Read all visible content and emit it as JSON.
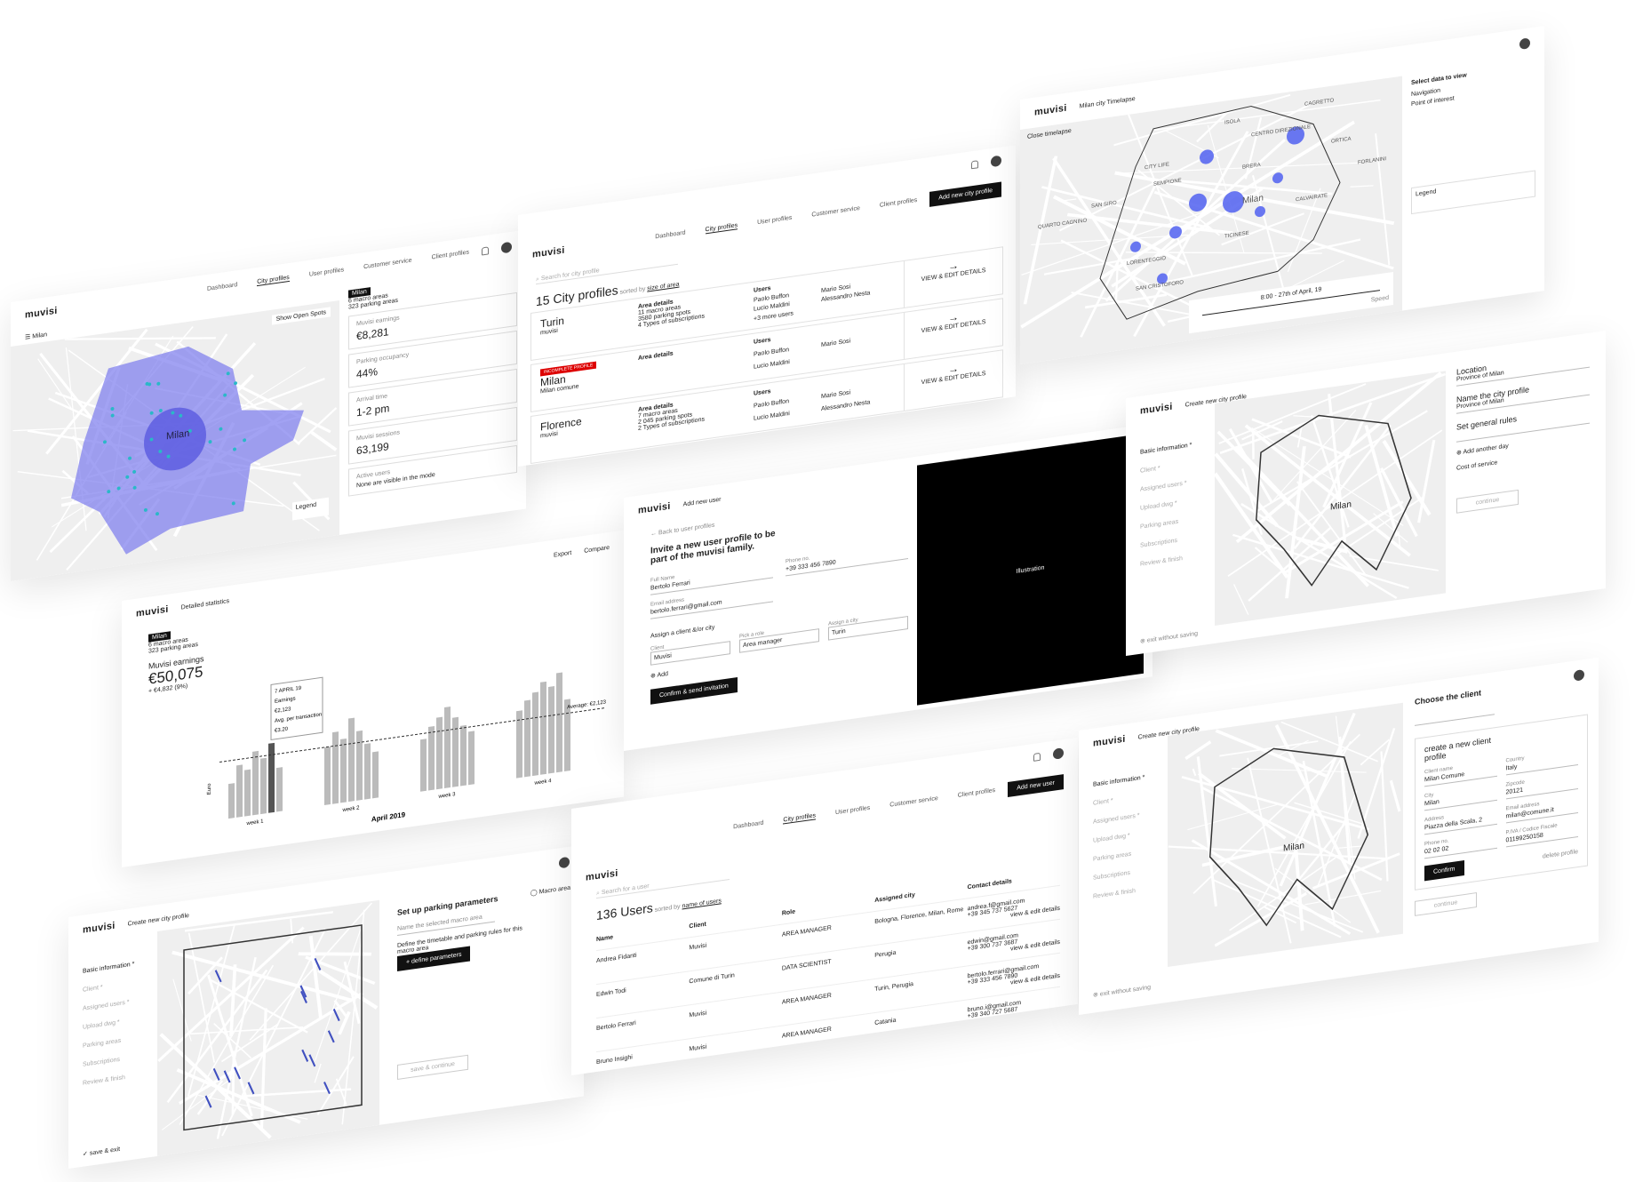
{
  "dashboard": {
    "brand": "muvisi",
    "nav": [
      "Dashboard",
      "City profiles",
      "User profiles",
      "Customer service",
      "Client profiles"
    ],
    "city": "Milan",
    "show_open_spots": "Show Open Spots",
    "macro": "Milan",
    "macro_areas": "6 macro areas",
    "parking_areas": "323 parking areas",
    "map_label": "Milan",
    "legend": "Legend",
    "kpis": [
      {
        "label": "Muvisi earnings",
        "value": "€8,281"
      },
      {
        "label": "Parking occupancy",
        "value": "44%"
      },
      {
        "label": "Arrival time",
        "value": "1-2 pm"
      },
      {
        "label": "Muvisi sessions",
        "value": "63,199"
      },
      {
        "label": "Active users",
        "value": "None are visible in the mode"
      }
    ]
  },
  "city_profiles": {
    "brand": "muvisi",
    "nav": [
      "Dashboard",
      "City profiles",
      "User profiles",
      "Customer service",
      "Client profiles"
    ],
    "add_button": "Add new city profile",
    "search": "Search for city profile",
    "count": "15 City profiles",
    "sorted": "sorted by",
    "sort_key": "size of area",
    "area_details": "Area details",
    "users_title": "Users",
    "action": "VIEW & EDIT DETAILS",
    "cities": [
      {
        "name": "Turin",
        "client": "muvisi",
        "details": [
          "11 macro areas",
          "3580 parking spots",
          "4 Types of subscriptions"
        ],
        "users": [
          "Paolo Buffon",
          "Mario Sosi",
          "Lucio Maldini",
          "Alessandro Nesta"
        ],
        "more": "+3 more users"
      },
      {
        "name": "Milan",
        "client": "Milan comune",
        "badge": "INCOMPLETE PROFILE",
        "details": [],
        "users": [
          "Paolo Buffon",
          "Mario Sosi",
          "Lucio Maldini"
        ]
      },
      {
        "name": "Florence",
        "client": "muvisi",
        "details": [
          "7 macro areas",
          "2 045 parking spots",
          "2 Types of subscriptions"
        ],
        "users": [
          "Paolo Buffon",
          "Mario Sosi",
          "Lucio Maldini",
          "Alessandro Nesta"
        ]
      }
    ]
  },
  "timelapse": {
    "brand": "muvisi",
    "title": "Milan city Timelapse",
    "close": "Close timelapse",
    "districts": [
      "ISOLA",
      "CENTRO DIREZIONALE",
      "CITY LIFE",
      "SEMPIONE",
      "BRERA",
      "SAN SIRO",
      "QUARTO CAGNINO",
      "TICINESE",
      "LORENTEGGIO",
      "SAN CRISTOFORO",
      "CALVAIRATE",
      "FORLANINI",
      "ORTICA",
      "CAGRETTO",
      "Milan"
    ],
    "time": "8:00 - 27th of April, 19",
    "speed": "Speed",
    "select": "Select data to view",
    "options": [
      "Navigation",
      "Point of interest"
    ],
    "legend": "Legend"
  },
  "statistics": {
    "brand": "muvisi",
    "title": "Detailed statistics",
    "export": "Export",
    "compare": "Compare",
    "macro": "Milan",
    "macro_areas": "6 macro areas",
    "parking_areas": "323 parking areas",
    "metric": "Muvisi earnings",
    "total": "€50,075",
    "change": "+ €4,832 (9%)",
    "tooltip": [
      "7 APRIL 19",
      "Earnings",
      "€2,123",
      "Avg. per transaction",
      "€3.20"
    ],
    "average": "Average: €2,123",
    "yaxis": "Euro",
    "weeks": [
      "week 1",
      "week 2",
      "week 3",
      "week 4"
    ],
    "bars": [
      [
        30,
        45,
        40,
        55,
        48,
        60,
        38
      ],
      [
        50,
        62,
        55,
        72,
        60,
        48,
        40
      ],
      [
        45,
        55,
        62,
        70,
        60,
        52,
        46
      ],
      [
        58,
        66,
        72,
        80,
        75,
        86,
        62
      ]
    ],
    "month": "April 2019"
  },
  "add_user": {
    "brand": "muvisi",
    "title": "Add new user",
    "back": "Back to user profiles",
    "heading": "Invite a new user profile to be part of the muvisi family.",
    "fields": [
      {
        "label": "Full Name",
        "value": "Bertolo Ferrari"
      },
      {
        "label": "Phone no.",
        "value": "+39 333 456 7890"
      },
      {
        "label": "Email address",
        "value": "bertolo.ferrari@gmail.com"
      }
    ],
    "assign": "Assign a client &/or city",
    "selects": [
      {
        "label": "Client",
        "value": "Muvisi"
      },
      {
        "label": "Pick a role",
        "value": "Area manager"
      },
      {
        "label": "Assign a city",
        "value": "Turin"
      }
    ],
    "add": "Add",
    "confirm": "Confirm & send invitation",
    "illustration": "Illustration"
  },
  "location": {
    "brand": "muvisi",
    "title": "Create new city profile",
    "steps": [
      "Basic information *",
      "Client *",
      "Assigned users *",
      "Upload dwg *",
      "Parking areas",
      "Subscriptions",
      "Review & finish"
    ],
    "location": "Location",
    "province": "Province of Milan",
    "name_title": "Name the city profile",
    "rules": "Set general rules",
    "add_day": "Add another day",
    "cost": "Cost of service",
    "continue": "continue",
    "exit": "exit without saving",
    "map_label": "Milan"
  },
  "parking": {
    "brand": "muvisi",
    "title": "Create new city profile",
    "steps": [
      "Basic information *",
      "Client *",
      "Assigned users *",
      "Upload dwg *",
      "Parking areas",
      "Subscriptions",
      "Review & finish"
    ],
    "heading": "Set up parking parameters",
    "macro": "Macro area",
    "name_label": "Name the selected macro area",
    "define_text": "Define the timetable and parking rules for this macro area",
    "define_button": "+ define parameters",
    "save": "save & continue",
    "save_exit": "save & exit"
  },
  "users": {
    "brand": "muvisi",
    "nav": [
      "Dashboard",
      "City profiles",
      "User profiles",
      "Customer service",
      "Client profiles"
    ],
    "add": "Add new user",
    "search": "Search for a user",
    "count": "136 Users",
    "sorted": "sorted by",
    "sort_key": "name of users",
    "headers": [
      "Name",
      "Client",
      "Role",
      "Assigned city",
      "Contact details"
    ],
    "action": "view & edit details",
    "rows": [
      {
        "name": "Andrea Fidanti",
        "client": "Muvisi",
        "role": "AREA MANAGER",
        "city": "Bologna, Florence, Milan, Rome",
        "email": "andrea.f@gmail.com",
        "phone": "+39 345 737 5627"
      },
      {
        "name": "Edwin Todi",
        "client": "Comune di Turin",
        "role": "DATA SCIENTIST",
        "city": "Perugia",
        "email": "edwin@gmail.com",
        "phone": "+39 300 737 3687"
      },
      {
        "name": "Bertolo Ferrari",
        "client": "Muvisi",
        "role": "AREA MANAGER",
        "city": "Turin, Perugia",
        "email": "bertolo.ferrari@gmail.com",
        "phone": "+39 333 456 7890"
      },
      {
        "name": "Bruno Insighi",
        "client": "Muvisi",
        "role": "AREA MANAGER",
        "city": "Catania",
        "email": "bruno.i@gmail.com",
        "phone": "+39 340 727 5687"
      }
    ]
  },
  "client": {
    "brand": "muvisi",
    "title": "Create new city profile",
    "steps": [
      "Basic information *",
      "Client *",
      "Assigned users *",
      "Upload dwg *",
      "Parking areas",
      "Subscriptions",
      "Review & finish"
    ],
    "heading": "Choose the client",
    "create": "create a new client profile",
    "fields": [
      {
        "label": "Client name",
        "value": "Milan Comune"
      },
      {
        "label": "Country",
        "value": "Italy"
      },
      {
        "label": "City",
        "value": "Milan"
      },
      {
        "label": "Zipcode",
        "value": "20121"
      },
      {
        "label": "Address",
        "value": "Piazza della Scala, 2"
      },
      {
        "label": "Email address",
        "value": "milan@comune.it"
      },
      {
        "label": "Phone no.",
        "value": "02 02 02"
      },
      {
        "label": "P.IVA / Codice Fiscale",
        "value": "01199250158"
      }
    ],
    "confirm": "Confirm",
    "delete": "delete profile",
    "continue": "continue",
    "exit": "exit without saving",
    "map_label": "Milan"
  }
}
